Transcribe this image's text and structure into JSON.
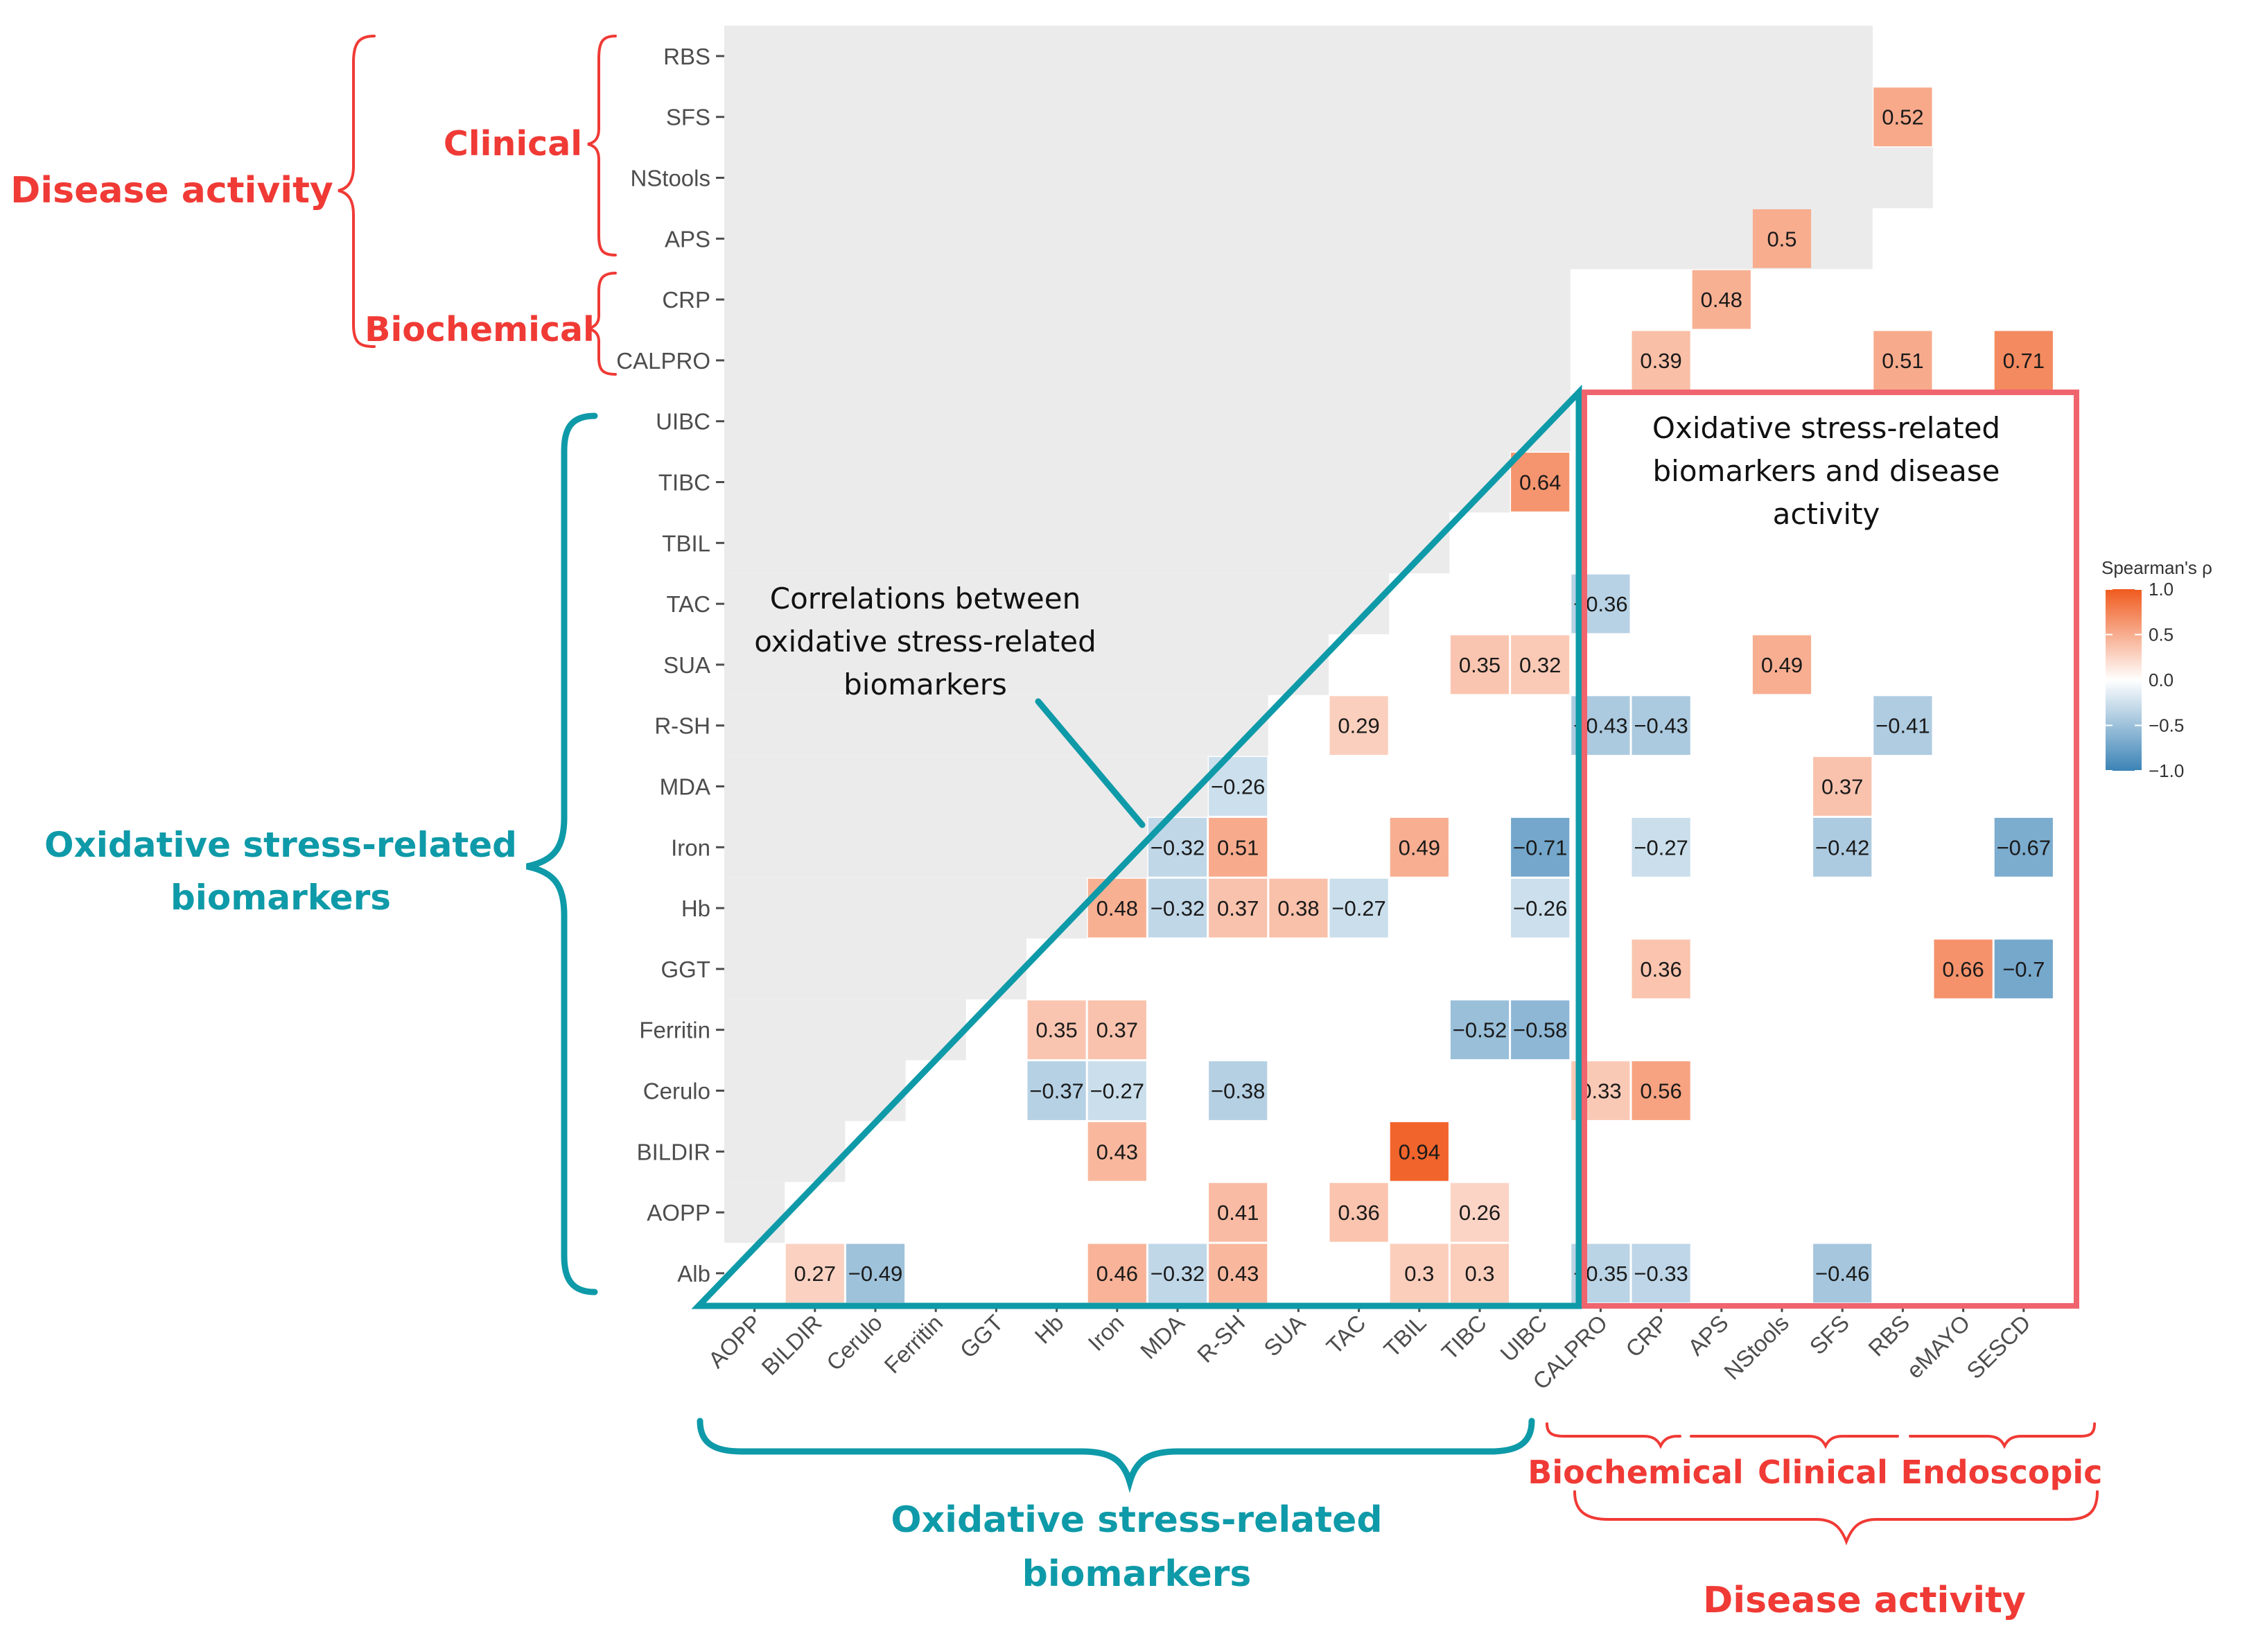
{
  "chart_data": {
    "type": "heatmap",
    "metric": "Spearman's ρ",
    "x_labels": [
      "AOPP",
      "BILDIR",
      "Cerulo",
      "Ferritin",
      "GGT",
      "Hb",
      "Iron",
      "MDA",
      "R-SH",
      "SUA",
      "TAC",
      "TBIL",
      "TIBC",
      "UIBC",
      "CALPRO",
      "CRP",
      "APS",
      "NStools",
      "SFS",
      "RBS",
      "eMAYO",
      "SESCD"
    ],
    "y_labels": [
      "RBS",
      "SFS",
      "NStools",
      "APS",
      "CRP",
      "CALPRO",
      "UIBC",
      "TIBC",
      "TBIL",
      "TAC",
      "SUA",
      "R-SH",
      "MDA",
      "Iron",
      "Hb",
      "GGT",
      "Ferritin",
      "Cerulo",
      "BILDIR",
      "AOPP",
      "Alb"
    ],
    "cells": [
      {
        "row": "SFS",
        "col": "RBS",
        "value": 0.52
      },
      {
        "row": "APS",
        "col": "NStools",
        "value": 0.5
      },
      {
        "row": "CRP",
        "col": "APS",
        "value": 0.48
      },
      {
        "row": "CALPRO",
        "col": "CRP",
        "value": 0.39
      },
      {
        "row": "CALPRO",
        "col": "RBS",
        "value": 0.51
      },
      {
        "row": "CALPRO",
        "col": "SESCD",
        "value": 0.71
      },
      {
        "row": "TIBC",
        "col": "UIBC",
        "value": 0.64
      },
      {
        "row": "TAC",
        "col": "CALPRO",
        "value": -0.36
      },
      {
        "row": "SUA",
        "col": "TIBC",
        "value": 0.35
      },
      {
        "row": "SUA",
        "col": "UIBC",
        "value": 0.32
      },
      {
        "row": "SUA",
        "col": "NStools",
        "value": 0.49
      },
      {
        "row": "R-SH",
        "col": "TAC",
        "value": 0.29
      },
      {
        "row": "R-SH",
        "col": "CALPRO",
        "value": -0.43
      },
      {
        "row": "R-SH",
        "col": "CRP",
        "value": -0.43
      },
      {
        "row": "R-SH",
        "col": "RBS",
        "value": -0.41
      },
      {
        "row": "MDA",
        "col": "R-SH",
        "value": -0.26
      },
      {
        "row": "MDA",
        "col": "SFS",
        "value": 0.37
      },
      {
        "row": "Iron",
        "col": "MDA",
        "value": -0.32
      },
      {
        "row": "Iron",
        "col": "R-SH",
        "value": 0.51
      },
      {
        "row": "Iron",
        "col": "TBIL",
        "value": 0.49
      },
      {
        "row": "Iron",
        "col": "UIBC",
        "value": -0.71
      },
      {
        "row": "Iron",
        "col": "CRP",
        "value": -0.27
      },
      {
        "row": "Iron",
        "col": "SFS",
        "value": -0.42
      },
      {
        "row": "Iron",
        "col": "SESCD",
        "value": -0.67
      },
      {
        "row": "Hb",
        "col": "Iron",
        "value": 0.48
      },
      {
        "row": "Hb",
        "col": "MDA",
        "value": -0.32
      },
      {
        "row": "Hb",
        "col": "R-SH",
        "value": 0.37
      },
      {
        "row": "Hb",
        "col": "SUA",
        "value": 0.38
      },
      {
        "row": "Hb",
        "col": "TAC",
        "value": -0.27
      },
      {
        "row": "Hb",
        "col": "UIBC",
        "value": -0.26
      },
      {
        "row": "GGT",
        "col": "CRP",
        "value": 0.36
      },
      {
        "row": "GGT",
        "col": "eMAYO",
        "value": 0.66
      },
      {
        "row": "GGT",
        "col": "SESCD",
        "value": -0.7
      },
      {
        "row": "Ferritin",
        "col": "Hb",
        "value": 0.35
      },
      {
        "row": "Ferritin",
        "col": "Iron",
        "value": 0.37
      },
      {
        "row": "Ferritin",
        "col": "TIBC",
        "value": -0.52
      },
      {
        "row": "Ferritin",
        "col": "UIBC",
        "value": -0.58
      },
      {
        "row": "Cerulo",
        "col": "Hb",
        "value": -0.37
      },
      {
        "row": "Cerulo",
        "col": "Iron",
        "value": -0.27
      },
      {
        "row": "Cerulo",
        "col": "R-SH",
        "value": -0.38
      },
      {
        "row": "Cerulo",
        "col": "CALPRO",
        "value": 0.33
      },
      {
        "row": "Cerulo",
        "col": "CRP",
        "value": 0.56
      },
      {
        "row": "BILDIR",
        "col": "Iron",
        "value": 0.43
      },
      {
        "row": "BILDIR",
        "col": "TBIL",
        "value": 0.94
      },
      {
        "row": "AOPP",
        "col": "R-SH",
        "value": 0.41
      },
      {
        "row": "AOPP",
        "col": "TAC",
        "value": 0.36
      },
      {
        "row": "AOPP",
        "col": "TIBC",
        "value": 0.26
      },
      {
        "row": "Alb",
        "col": "BILDIR",
        "value": 0.27
      },
      {
        "row": "Alb",
        "col": "Cerulo",
        "value": -0.49
      },
      {
        "row": "Alb",
        "col": "Iron",
        "value": 0.46
      },
      {
        "row": "Alb",
        "col": "MDA",
        "value": -0.32
      },
      {
        "row": "Alb",
        "col": "R-SH",
        "value": 0.43
      },
      {
        "row": "Alb",
        "col": "TBIL",
        "value": 0.3
      },
      {
        "row": "Alb",
        "col": "TIBC",
        "value": 0.3
      },
      {
        "row": "Alb",
        "col": "CALPRO",
        "value": -0.35
      },
      {
        "row": "Alb",
        "col": "CRP",
        "value": -0.33
      },
      {
        "row": "Alb",
        "col": "SFS",
        "value": -0.46
      }
    ],
    "legend": {
      "title": "Spearman's ρ",
      "ticks": [
        1.0,
        0.5,
        0.0,
        -0.5,
        -1.0
      ],
      "tick_labels": [
        "1.0",
        "0.5",
        "0.0",
        "−0.5",
        "−1.0"
      ],
      "low_color": "#3b83b6",
      "mid_color": "#ffffff",
      "high_color": "#f05a1e"
    }
  },
  "annotations": {
    "left_disease_activity": "Disease activity",
    "left_clinical": "Clinical",
    "left_biochemical": "Biochemical",
    "left_oxidative": [
      "Oxidative stress-related",
      "biomarkers"
    ],
    "triangle_note": [
      "Correlations between",
      "oxidative stress-related",
      "biomarkers"
    ],
    "box_note": [
      "Oxidative stress-related",
      "biomarkers and disease",
      "activity"
    ],
    "bottom_oxidative": [
      "Oxidative stress-related",
      "biomarkers"
    ],
    "bottom_biochemical": "Biochemical",
    "bottom_clinical": "Clinical",
    "bottom_endoscopic": "Endoscopic",
    "bottom_disease_activity": "Disease activity"
  },
  "colors": {
    "teal": "#0e9aa8",
    "red": "#f03a35",
    "box": "#f0646e",
    "masked": "#ebebeb"
  }
}
